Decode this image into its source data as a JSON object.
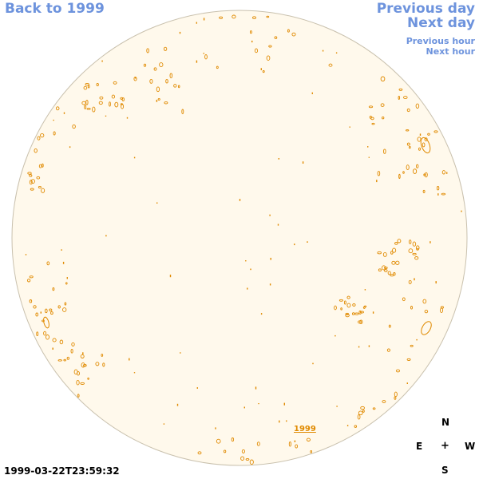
{
  "navigation": {
    "back_label": "Back to 1999",
    "previous_day_label": "Previous day",
    "next_day_label": "Next day",
    "previous_hour_label": "Previous hour",
    "next_hour_label": "Next hour"
  },
  "compass": {
    "north": "N",
    "east": "E",
    "center": "+",
    "west": "W",
    "south": "S"
  },
  "timestamp": "1999-03-22T23:59:32",
  "year_marker": "1999",
  "colors": {
    "link": "#6d93dd",
    "disk_fill": "#fff9ec",
    "disk_edge": "#c9c1ae",
    "contour": "#e08a00"
  },
  "icons": {
    "solar-disk": "circle",
    "magnetic-contours": "small-loops"
  }
}
